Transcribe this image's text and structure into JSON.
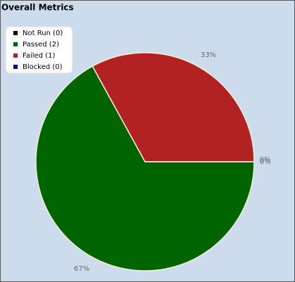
{
  "chart_data": {
    "type": "pie",
    "title": "Overall Metrics",
    "categories": [
      "Not Run (0)",
      "Passed (2)",
      "Failed (1)",
      "Blocked (0)"
    ],
    "values": [
      0,
      67,
      33,
      0
    ],
    "value_labels": [
      "0%",
      "67%",
      "33%",
      "0%"
    ],
    "colors": [
      "#000000",
      "#006400",
      "#b22222",
      "#00008b"
    ]
  }
}
